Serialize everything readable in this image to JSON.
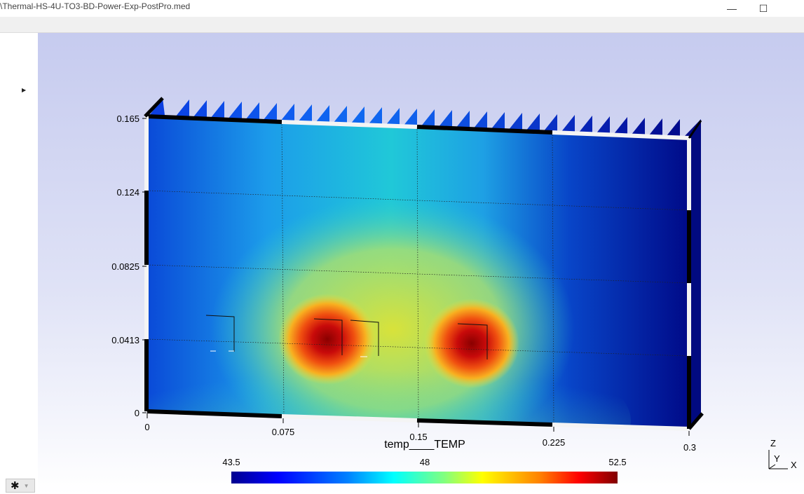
{
  "window": {
    "title": "\\Thermal-HS-4U-TO3-BD-Power-Exp-PostPro.med",
    "minimize_glyph": "—",
    "maximize_glyph": "☐"
  },
  "viewer": {
    "y_axis_ticks": [
      "0.165",
      "0.124",
      "0.0825",
      "0.0413",
      "0"
    ],
    "x_axis_ticks": [
      "0",
      "0.075",
      "0.15",
      "0.225",
      "0.3"
    ],
    "field_title": "temp____TEMP",
    "colorbar": {
      "min_label": "43.5",
      "mid_label": "48",
      "max_label": "52.5",
      "colormap": [
        "#00008f",
        "#0000ff",
        "#0080ff",
        "#00ffff",
        "#80ff80",
        "#ffff00",
        "#ff8000",
        "#ff0000",
        "#800000"
      ]
    },
    "triad": {
      "z_label": "Z",
      "y_label": "Y",
      "x_label": "X"
    }
  },
  "icons": {
    "expander": "triangle-right-icon",
    "settings": "gear-icon",
    "settings_dropdown": "chevron-down-icon"
  },
  "colors": {
    "background_top": "#c6cbef",
    "background_bottom": "#ffffff"
  }
}
